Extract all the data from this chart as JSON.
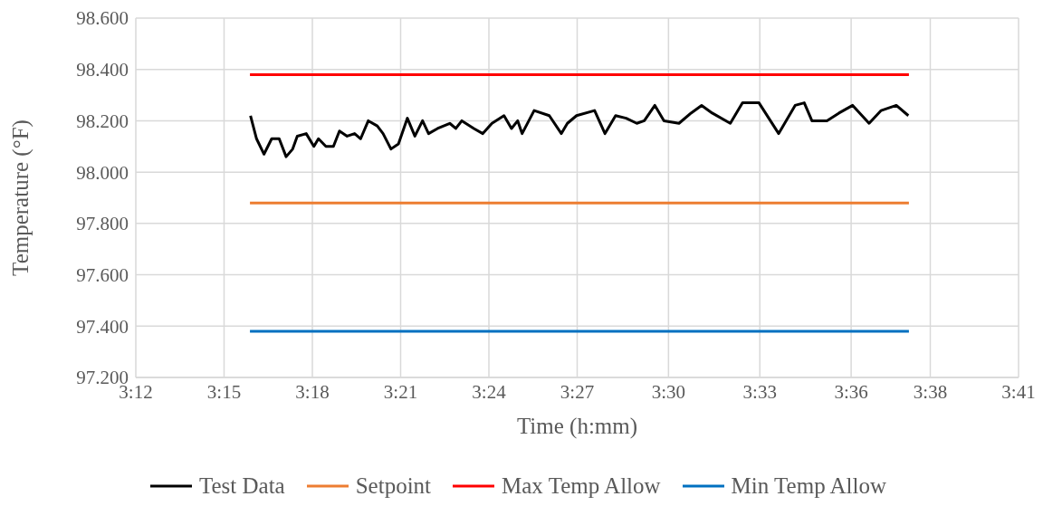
{
  "chart_data": {
    "type": "line",
    "xlabel": "Time (h:mm)",
    "ylabel": "Temperature (°F)",
    "xlim": [
      3.2,
      3.683333
    ],
    "ylim": [
      97.2,
      98.6
    ],
    "xticks": [
      {
        "value": 3.2,
        "label": "3:12"
      },
      {
        "value": 3.248333,
        "label": "3:15"
      },
      {
        "value": 3.296667,
        "label": "3:18"
      },
      {
        "value": 3.345,
        "label": "3:21"
      },
      {
        "value": 3.393333,
        "label": "3:24"
      },
      {
        "value": 3.441667,
        "label": "3:27"
      },
      {
        "value": 3.491667,
        "label": "3:30"
      },
      {
        "value": 3.541667,
        "label": "3:33"
      },
      {
        "value": 3.591667,
        "label": "3:36"
      },
      {
        "value": 3.635,
        "label": "3:38"
      },
      {
        "value": 3.683333,
        "label": "3:41"
      }
    ],
    "yticks": [
      {
        "value": 97.2,
        "label": "97.200"
      },
      {
        "value": 97.4,
        "label": "97.400"
      },
      {
        "value": 97.6,
        "label": "97.600"
      },
      {
        "value": 97.8,
        "label": "97.800"
      },
      {
        "value": 98.0,
        "label": "98.000"
      },
      {
        "value": 98.2,
        "label": "98.200"
      },
      {
        "value": 98.4,
        "label": "98.400"
      },
      {
        "value": 98.6,
        "label": "98.600"
      }
    ],
    "grid": true,
    "legend": "bottom",
    "marker": "none",
    "line_style": "solid",
    "series": [
      {
        "name": "Test Data",
        "color": "#000000",
        "x": [
          3.2628,
          3.2661,
          3.2702,
          3.2744,
          3.2785,
          3.2823,
          3.2859,
          3.2884,
          3.2933,
          3.2975,
          3.3,
          3.3041,
          3.3082,
          3.3115,
          3.3157,
          3.3198,
          3.3231,
          3.3273,
          3.3322,
          3.3354,
          3.3397,
          3.3438,
          3.3487,
          3.3528,
          3.357,
          3.3603,
          3.3652,
          3.3719,
          3.3752,
          3.3785,
          3.3851,
          3.39,
          3.395,
          3.4016,
          3.4057,
          3.4091,
          3.4115,
          3.4181,
          3.4264,
          3.433,
          3.4363,
          3.4413,
          3.4512,
          3.4569,
          3.4627,
          3.4685,
          3.4743,
          3.4784,
          3.4842,
          3.4892,
          3.4974,
          3.504,
          3.5098,
          3.5156,
          3.5255,
          3.5322,
          3.5412,
          3.552,
          3.561,
          3.566,
          3.5702,
          3.5784,
          3.585,
          3.5925,
          3.6015,
          3.6081,
          3.6164,
          3.623
        ],
        "values": [
          98.22,
          98.13,
          98.07,
          98.13,
          98.13,
          98.06,
          98.09,
          98.14,
          98.15,
          98.1,
          98.13,
          98.1,
          98.1,
          98.16,
          98.14,
          98.15,
          98.13,
          98.2,
          98.18,
          98.15,
          98.09,
          98.11,
          98.21,
          98.14,
          98.2,
          98.15,
          98.17,
          98.19,
          98.17,
          98.2,
          98.17,
          98.15,
          98.19,
          98.22,
          98.17,
          98.2,
          98.15,
          98.24,
          98.22,
          98.15,
          98.19,
          98.22,
          98.24,
          98.15,
          98.22,
          98.21,
          98.19,
          98.2,
          98.26,
          98.2,
          98.19,
          98.23,
          98.26,
          98.23,
          98.19,
          98.27,
          98.27,
          98.15,
          98.26,
          98.27,
          98.2,
          98.2,
          98.23,
          98.26,
          98.19,
          98.24,
          98.26,
          98.22
        ]
      },
      {
        "name": "Setpoint",
        "color": "#ed7d31",
        "x": [
          3.2625,
          3.6233
        ],
        "values": [
          97.88,
          97.88
        ]
      },
      {
        "name": "Max Temp Allow",
        "color": "#ff0000",
        "x": [
          3.2625,
          3.6233
        ],
        "values": [
          98.38,
          98.38
        ]
      },
      {
        "name": "Min Temp Allow",
        "color": "#0070c0",
        "x": [
          3.2625,
          3.6233
        ],
        "values": [
          97.38,
          97.38
        ]
      }
    ]
  }
}
